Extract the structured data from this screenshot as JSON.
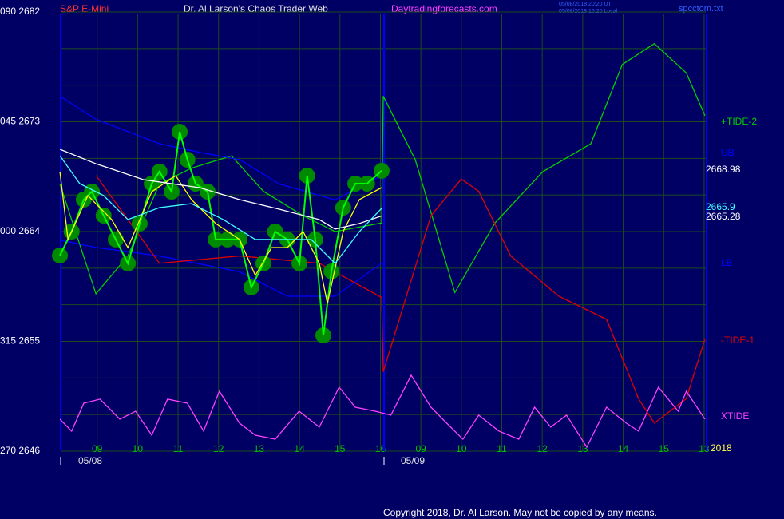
{
  "chart_data": {
    "type": "line",
    "symbol": "S&P E-Mini",
    "title": "Dr. Al Larson's Chaos Trader Web",
    "website": "Daytradingforecasts.com",
    "timestamps": [
      "05/08/2018 20:20 UT",
      "05/08/2018 16:20 Local"
    ],
    "file": "spcctom.txt",
    "copyright": "Copyright 2018, Dr. Al Larson. May not be copied by any means.",
    "year": "2018",
    "date_labels": [
      "05/08",
      "05/09"
    ],
    "ylim": [
      2646,
      2682
    ],
    "yticks": [
      {
        "value": 2682,
        "label": "090 2682"
      },
      {
        "value": 2673,
        "label": "045 2673"
      },
      {
        "value": 2664,
        "label": "000 2664"
      },
      {
        "value": 2655,
        "label": "315 2655"
      },
      {
        "value": 2646,
        "label": "270 2646"
      }
    ],
    "minor_yticks": [
      2649,
      2652,
      2658,
      2661,
      2667,
      2670,
      2676,
      2679
    ],
    "xlim": [
      0,
      16.1
    ],
    "xticks": [
      {
        "value": 1,
        "label": "09"
      },
      {
        "value": 2,
        "label": "10"
      },
      {
        "value": 3,
        "label": "11"
      },
      {
        "value": 4,
        "label": "12"
      },
      {
        "value": 5,
        "label": "13"
      },
      {
        "value": 6,
        "label": "14"
      },
      {
        "value": 7,
        "label": "15"
      },
      {
        "value": 8,
        "label": "16"
      },
      {
        "value": 9,
        "label": "09"
      },
      {
        "value": 10,
        "label": "10"
      },
      {
        "value": 11,
        "label": "11"
      },
      {
        "value": 12,
        "label": "12"
      },
      {
        "value": 13,
        "label": "13"
      },
      {
        "value": 14,
        "label": "14"
      },
      {
        "value": 15,
        "label": "15"
      },
      {
        "value": 16,
        "label": "13"
      }
    ],
    "grid": true,
    "series": [
      {
        "name": "+TIDE-2",
        "color": "#00d000",
        "x": [
          0.08,
          0.97,
          1.76,
          2.54,
          3.33,
          4.32,
          5.11,
          6.09,
          6.88,
          8.03,
          8.07,
          8.86,
          9.84,
          10.83,
          12.01,
          13.2,
          13.98,
          14.77,
          15.56,
          16.02
        ],
        "values": [
          2667.9,
          2658.9,
          2662.0,
          2667.9,
          2669.2,
          2670.2,
          2667.3,
          2665.3,
          2664.0,
          2664.7,
          2675.1,
          2669.9,
          2659.0,
          2664.7,
          2668.9,
          2671.2,
          2677.7,
          2679.4,
          2677.0,
          2673.5
        ]
      },
      {
        "name": "UB",
        "color": "#0000ff",
        "x": [
          0.08,
          0.97,
          2.54,
          3.53,
          4.52,
          5.5,
          6.88,
          8.03
        ],
        "values": [
          2675.1,
          2673.2,
          2671.2,
          2670.5,
          2669.9,
          2667.9,
          2666.6,
          2668.6
        ]
      },
      {
        "name": "LB",
        "color": "#0000ff",
        "x": [
          0.08,
          0.97,
          2.54,
          4.52,
          5.7,
          6.88,
          8.03
        ],
        "values": [
          2663.3,
          2662.7,
          2662.0,
          2660.7,
          2658.7,
          2658.7,
          2661.4
        ]
      },
      {
        "name": "-TIDE-1",
        "color": "#e00000",
        "x": [
          0.97,
          2.54,
          4.52,
          6.49,
          8.03,
          8.07,
          9.25,
          10.0,
          10.43,
          11.22,
          12.41,
          13.59,
          14.38,
          14.77,
          15.56,
          16.02
        ],
        "values": [
          2668.6,
          2661.4,
          2662.0,
          2661.4,
          2658.6,
          2652.5,
          2665.3,
          2668.3,
          2667.3,
          2662.0,
          2658.7,
          2656.8,
          2650.3,
          2648.3,
          2650.3,
          2655.2
        ]
      },
      {
        "name": "XTIDE",
        "color": "#ff40ff",
        "x": [
          0.08,
          0.37,
          0.67,
          1.07,
          1.56,
          1.95,
          2.35,
          2.74,
          3.23,
          3.63,
          4.02,
          4.52,
          4.91,
          5.4,
          5.99,
          6.49,
          6.98,
          7.38,
          7.87,
          8.26,
          8.76,
          9.25,
          9.64,
          10.04,
          10.43,
          10.93,
          11.42,
          11.81,
          12.21,
          12.6,
          13.1,
          13.59,
          14.08,
          14.38,
          14.87,
          15.36,
          15.56,
          16.02
        ],
        "values": [
          2648.62,
          2647.64,
          2649.93,
          2650.26,
          2648.62,
          2649.27,
          2647.31,
          2650.26,
          2649.93,
          2647.64,
          2650.91,
          2648.29,
          2647.31,
          2646.98,
          2649.27,
          2647.97,
          2651.24,
          2649.6,
          2649.27,
          2648.95,
          2652.22,
          2649.6,
          2648.29,
          2646.98,
          2648.95,
          2647.64,
          2646.98,
          2649.6,
          2647.97,
          2648.95,
          2646.33,
          2649.6,
          2648.29,
          2647.64,
          2651.24,
          2649.27,
          2650.91,
          2648.62
        ]
      },
      {
        "color": "#00ff00",
        "marker_color": "#008a00",
        "x": [
          0.08,
          0.37,
          0.67,
          0.87,
          1.16,
          1.46,
          1.76,
          2.05,
          2.35,
          2.54,
          2.84,
          3.04,
          3.23,
          3.43,
          3.73,
          3.93,
          4.22,
          4.52,
          4.81,
          5.11,
          5.4,
          5.7,
          6.0,
          6.19,
          6.39,
          6.59,
          6.79,
          7.08,
          7.38,
          7.67,
          8.03
        ],
        "values": [
          2662.04,
          2664.0,
          2666.62,
          2667.27,
          2665.31,
          2663.35,
          2661.39,
          2664.66,
          2667.93,
          2668.91,
          2667.27,
          2672.18,
          2669.89,
          2667.93,
          2667.27,
          2663.35,
          2663.35,
          2663.35,
          2659.42,
          2661.39,
          2664.0,
          2663.35,
          2661.39,
          2668.58,
          2663.35,
          2655.49,
          2660.73,
          2665.96,
          2667.93,
          2667.93,
          2668.98
        ]
      },
      {
        "color": "#ffff00",
        "x": [
          0.08,
          0.28,
          0.77,
          1.36,
          1.76,
          2.35,
          2.94,
          3.33,
          3.93,
          4.52,
          4.91,
          5.31,
          5.7,
          6.09,
          6.49,
          6.69,
          7.08,
          7.48,
          8.03
        ],
        "values": [
          2668.91,
          2663.35,
          2666.95,
          2664.98,
          2662.69,
          2667.27,
          2668.58,
          2666.62,
          2664.66,
          2663.35,
          2660.4,
          2662.69,
          2662.69,
          2664.0,
          2661.39,
          2658.11,
          2664.0,
          2666.62,
          2667.6
        ]
      },
      {
        "color": "#ffffff",
        "x": [
          0.08,
          0.97,
          2.15,
          3.53,
          4.52,
          5.5,
          6.49,
          6.88,
          7.48,
          8.03
        ],
        "values": [
          2670.74,
          2669.56,
          2668.25,
          2667.6,
          2666.62,
          2665.83,
          2664.98,
          2664.2,
          2664.66,
          2665.28
        ]
      },
      {
        "color": "#40ffff",
        "x": [
          0.08,
          0.57,
          1.16,
          1.76,
          2.54,
          3.33,
          4.12,
          4.91,
          5.7,
          6.29,
          6.88,
          7.48,
          8.03
        ],
        "values": [
          2670.22,
          2667.93,
          2666.95,
          2664.98,
          2665.96,
          2666.29,
          2664.98,
          2663.35,
          2663.35,
          2663.35,
          2661.39,
          2664.0,
          2665.9
        ]
      }
    ]
  }
}
